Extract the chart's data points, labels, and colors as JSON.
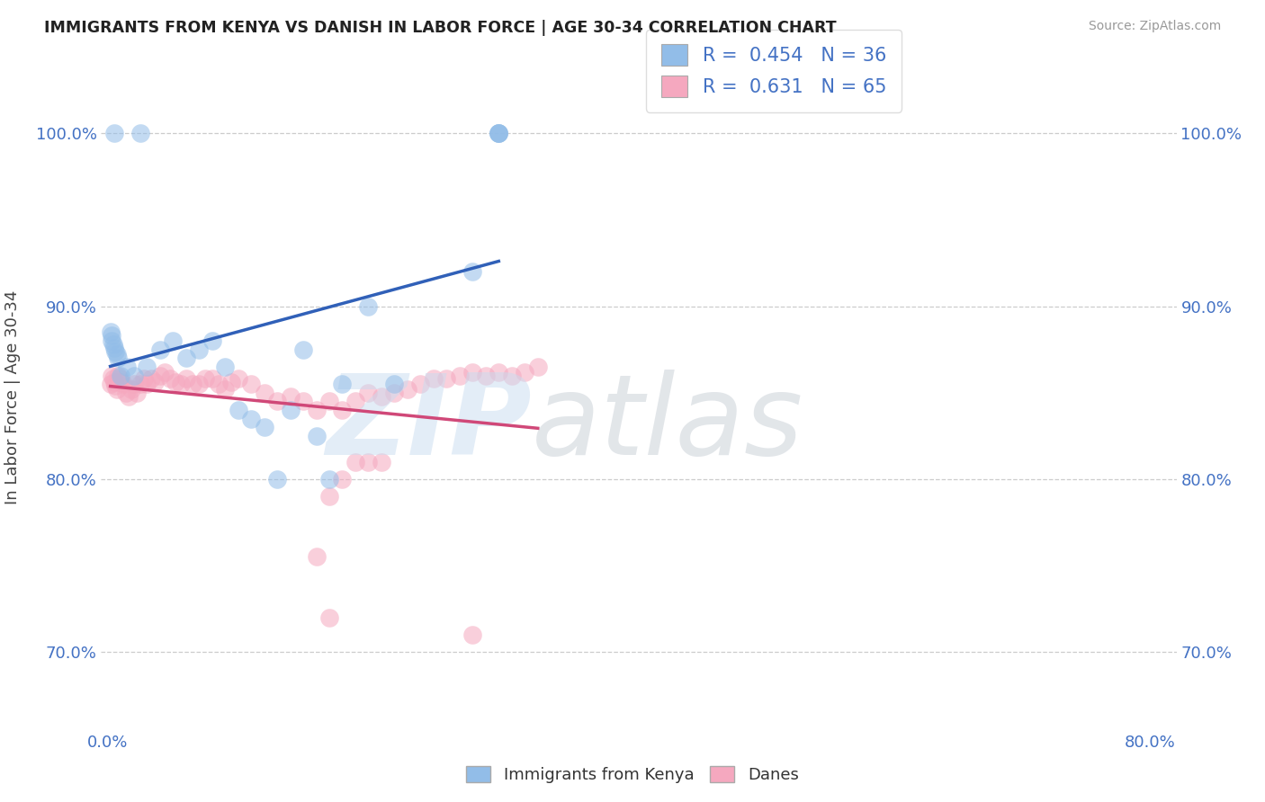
{
  "title": "IMMIGRANTS FROM KENYA VS DANISH IN LABOR FORCE | AGE 30-34 CORRELATION CHART",
  "source": "Source: ZipAtlas.com",
  "ylabel": "In Labor Force | Age 30-34",
  "xlim": [
    -0.005,
    0.82
  ],
  "ylim": [
    0.655,
    1.04
  ],
  "ytick_labels": [
    "70.0%",
    "80.0%",
    "90.0%",
    "100.0%"
  ],
  "ytick_values": [
    0.7,
    0.8,
    0.9,
    1.0
  ],
  "xtick_labels": [
    "0.0%",
    "80.0%"
  ],
  "xtick_values": [
    0.0,
    0.8
  ],
  "kenya_R": "0.454",
  "kenya_N": "36",
  "danes_R": "0.631",
  "danes_N": "65",
  "kenya_color": "#92bde8",
  "danes_color": "#f5a8bf",
  "kenya_line_color": "#3060b8",
  "danes_line_color": "#d04878",
  "kenya_x": [
    0.005,
    0.025,
    0.002,
    0.003,
    0.003,
    0.004,
    0.005,
    0.006,
    0.007,
    0.008,
    0.01,
    0.015,
    0.02,
    0.03,
    0.04,
    0.05,
    0.06,
    0.07,
    0.08,
    0.09,
    0.1,
    0.11,
    0.12,
    0.13,
    0.14,
    0.15,
    0.16,
    0.17,
    0.18,
    0.2,
    0.22,
    0.28,
    0.3,
    0.3,
    0.3,
    0.3
  ],
  "kenya_y": [
    1.0,
    1.0,
    0.885,
    0.883,
    0.88,
    0.878,
    0.876,
    0.874,
    0.872,
    0.87,
    0.86,
    0.865,
    0.86,
    0.865,
    0.875,
    0.88,
    0.87,
    0.875,
    0.88,
    0.865,
    0.84,
    0.835,
    0.83,
    0.8,
    0.84,
    0.875,
    0.825,
    0.8,
    0.855,
    0.9,
    0.855,
    0.92,
    1.0,
    1.0,
    1.0,
    1.0
  ],
  "danes_x": [
    0.002,
    0.003,
    0.004,
    0.005,
    0.006,
    0.007,
    0.008,
    0.009,
    0.01,
    0.012,
    0.014,
    0.016,
    0.018,
    0.02,
    0.022,
    0.025,
    0.028,
    0.03,
    0.033,
    0.036,
    0.04,
    0.044,
    0.048,
    0.052,
    0.056,
    0.06,
    0.065,
    0.07,
    0.075,
    0.08,
    0.085,
    0.09,
    0.095,
    0.1,
    0.11,
    0.12,
    0.13,
    0.14,
    0.15,
    0.16,
    0.17,
    0.18,
    0.19,
    0.2,
    0.21,
    0.22,
    0.23,
    0.24,
    0.25,
    0.26,
    0.27,
    0.28,
    0.29,
    0.3,
    0.31,
    0.32,
    0.33,
    0.17,
    0.18,
    0.19,
    0.2,
    0.21,
    0.16,
    0.17,
    0.28
  ],
  "danes_y": [
    0.855,
    0.86,
    0.858,
    0.856,
    0.854,
    0.852,
    0.86,
    0.858,
    0.856,
    0.855,
    0.85,
    0.848,
    0.852,
    0.855,
    0.85,
    0.855,
    0.858,
    0.855,
    0.858,
    0.856,
    0.86,
    0.862,
    0.858,
    0.856,
    0.855,
    0.858,
    0.855,
    0.855,
    0.858,
    0.858,
    0.855,
    0.852,
    0.856,
    0.858,
    0.855,
    0.85,
    0.845,
    0.848,
    0.845,
    0.84,
    0.845,
    0.84,
    0.845,
    0.85,
    0.848,
    0.85,
    0.852,
    0.855,
    0.858,
    0.858,
    0.86,
    0.862,
    0.86,
    0.862,
    0.86,
    0.862,
    0.865,
    0.79,
    0.8,
    0.81,
    0.81,
    0.81,
    0.755,
    0.72,
    0.71
  ]
}
